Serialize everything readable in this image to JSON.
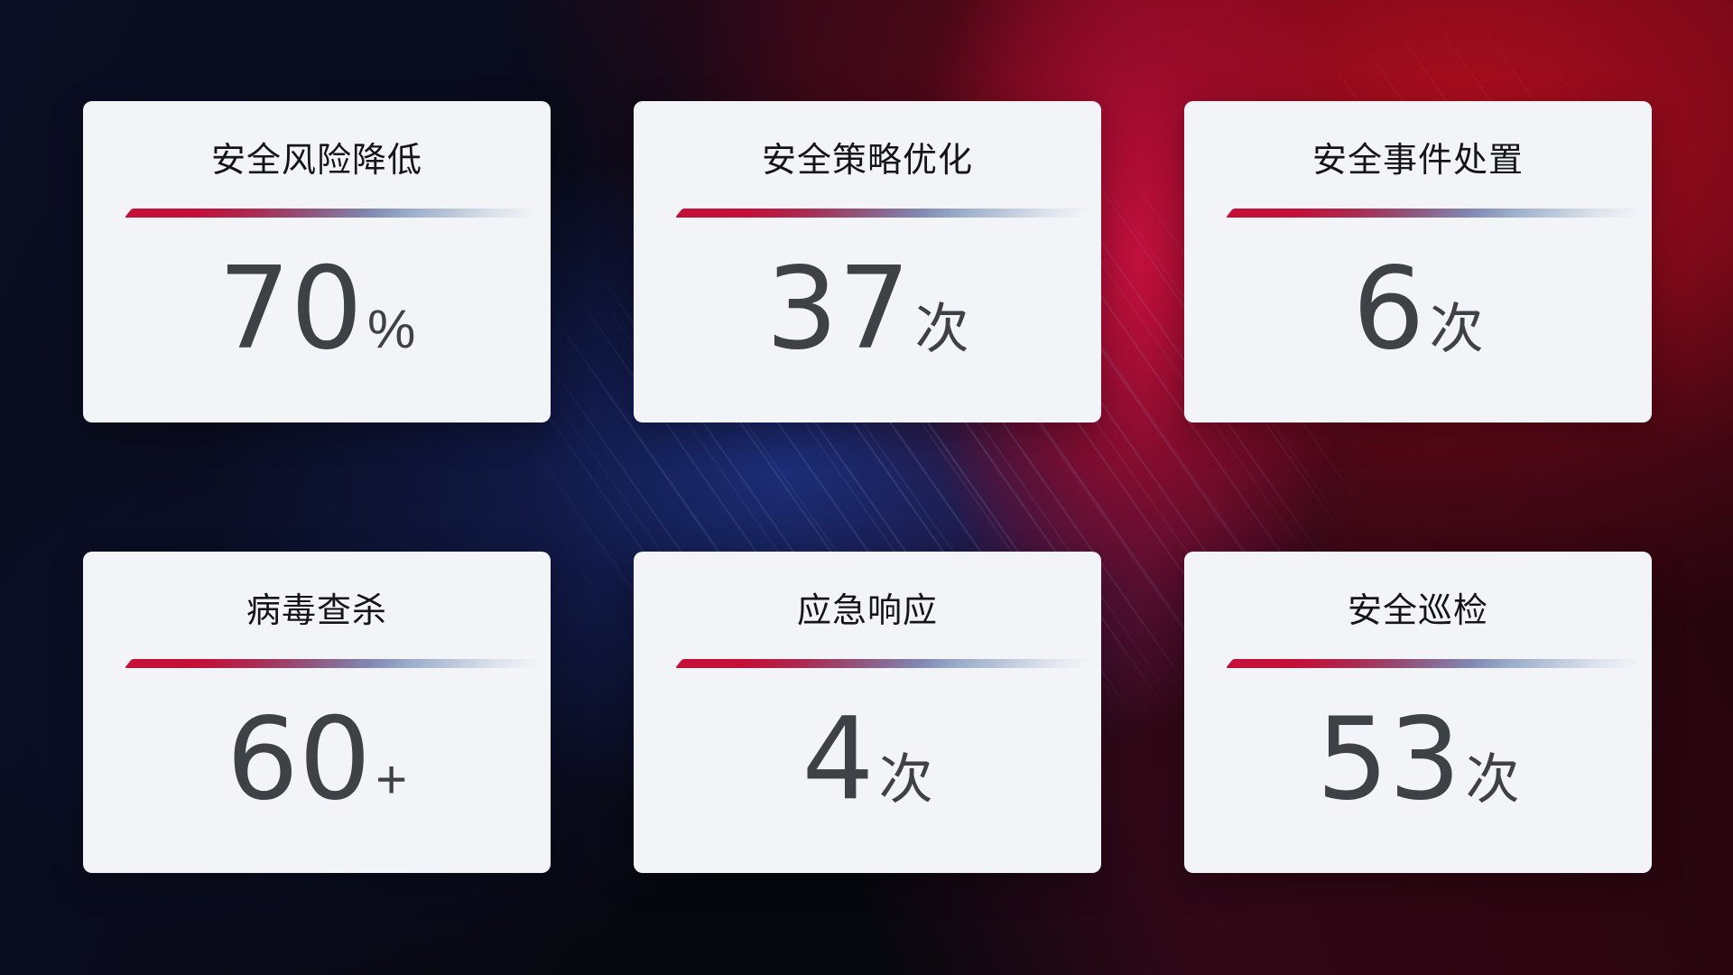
{
  "cards": [
    {
      "title": "安全风险降低",
      "value": "70",
      "unit": "%"
    },
    {
      "title": "安全策略优化",
      "value": "37",
      "unit": "次"
    },
    {
      "title": "安全事件处置",
      "value": "6",
      "unit": "次"
    },
    {
      "title": "病毒查杀",
      "value": "60",
      "unit": "+"
    },
    {
      "title": "应急响应",
      "value": "4",
      "unit": "次"
    },
    {
      "title": "安全巡检",
      "value": "53",
      "unit": "次"
    }
  ],
  "colors": {
    "card_background": "#f2f4f8",
    "title_text": "#141519",
    "value_text": "#3e4146",
    "divider_red": "#c50f38",
    "divider_blue": "#8e9fc4",
    "background_navy": "#1d2f7c",
    "background_crimson": "#b40e38"
  }
}
